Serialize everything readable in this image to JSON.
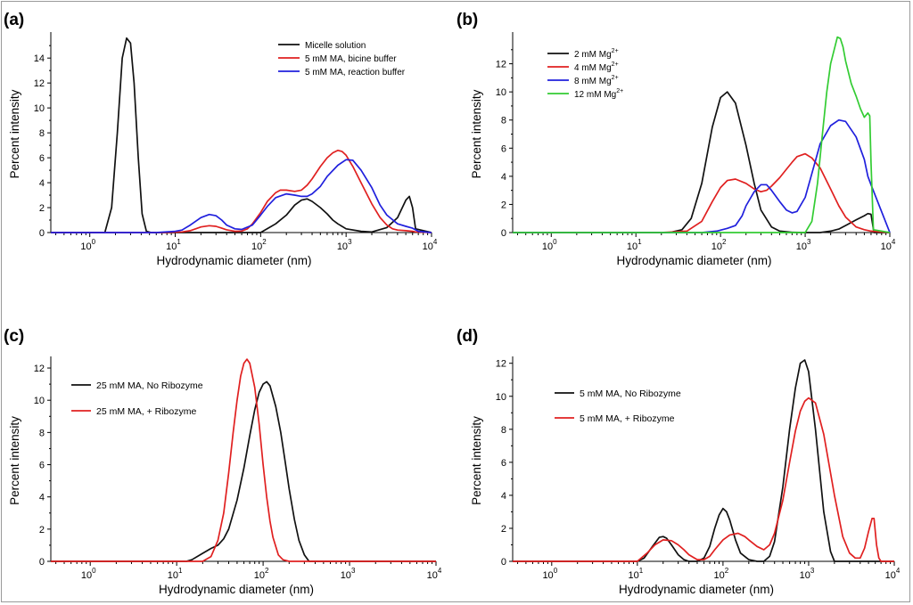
{
  "figure": {
    "tick_labels_x": [
      "10",
      "10",
      "10",
      "10",
      "10"
    ],
    "tick_exponents_x": [
      "0",
      "1",
      "2",
      "3",
      "4"
    ]
  },
  "chart_data": [
    {
      "panel": "(a)",
      "type": "line",
      "xscale": "log",
      "xlim": [
        0.35,
        10000
      ],
      "ylim": [
        0,
        15.8
      ],
      "yticks": [
        0,
        2,
        4,
        6,
        8,
        10,
        12,
        14
      ],
      "xlabel": "Hydrodynamic diameter (nm)",
      "ylabel": "Percent intensity",
      "legend_position": "top-right",
      "series": [
        {
          "name": "Micelle solution",
          "color": "#111111",
          "x": [
            0.35,
            1.5,
            1.8,
            2.1,
            2.4,
            2.7,
            3.0,
            3.3,
            3.7,
            4.1,
            4.6,
            5.2,
            100,
            150,
            200,
            250,
            300,
            350,
            400,
            500,
            600,
            700,
            800,
            1000,
            1500,
            2000,
            3000,
            4000,
            5000,
            5500,
            6000,
            6500,
            10000
          ],
          "y": [
            0,
            0,
            2.0,
            8.0,
            14.0,
            15.6,
            15.2,
            12.0,
            6.0,
            1.5,
            0.1,
            0,
            0,
            0.7,
            1.4,
            2.2,
            2.6,
            2.7,
            2.5,
            2.0,
            1.5,
            1.0,
            0.7,
            0.3,
            0.1,
            0.05,
            0.4,
            1.2,
            2.6,
            2.9,
            2.0,
            0.3,
            0
          ]
        },
        {
          "name": "5 mM MA, bicine buffer",
          "color": "#e02020",
          "x": [
            0.35,
            7,
            12,
            15,
            20,
            25,
            30,
            35,
            40,
            50,
            60,
            70,
            80,
            100,
            120,
            150,
            170,
            200,
            250,
            300,
            350,
            400,
            500,
            600,
            700,
            800,
            900,
            1000,
            1200,
            1500,
            2000,
            2500,
            3000,
            3500,
            4000,
            5000,
            6000,
            6500,
            10000
          ],
          "y": [
            0,
            0,
            0.05,
            0.15,
            0.45,
            0.55,
            0.5,
            0.35,
            0.22,
            0.1,
            0.12,
            0.3,
            0.7,
            1.6,
            2.5,
            3.2,
            3.4,
            3.4,
            3.3,
            3.4,
            3.8,
            4.3,
            5.3,
            6.0,
            6.4,
            6.6,
            6.5,
            6.2,
            5.3,
            4.0,
            2.3,
            1.2,
            0.6,
            0.3,
            0.2,
            0.15,
            0.1,
            0.05,
            0
          ]
        },
        {
          "name": "5 mM MA, reaction buffer",
          "color": "#2020dd",
          "x": [
            0.35,
            6,
            10,
            12,
            15,
            20,
            25,
            30,
            35,
            40,
            50,
            60,
            80,
            100,
            120,
            150,
            200,
            250,
            300,
            350,
            400,
            500,
            600,
            800,
            1000,
            1200,
            1500,
            2000,
            2500,
            3000,
            4000,
            5000,
            6000,
            7000,
            10000
          ],
          "y": [
            0,
            0,
            0.1,
            0.2,
            0.6,
            1.2,
            1.45,
            1.35,
            1.0,
            0.6,
            0.3,
            0.25,
            0.6,
            1.4,
            2.1,
            2.8,
            3.1,
            3.0,
            2.9,
            2.9,
            3.1,
            3.7,
            4.5,
            5.4,
            5.85,
            5.8,
            5.0,
            3.6,
            2.2,
            1.4,
            0.7,
            0.5,
            0.35,
            0.1,
            0
          ]
        }
      ]
    },
    {
      "panel": "(b)",
      "type": "line",
      "xscale": "log",
      "xlim": [
        0.35,
        10000
      ],
      "ylim": [
        0,
        14
      ],
      "yticks": [
        0,
        2,
        4,
        6,
        8,
        10,
        12
      ],
      "xlabel": "Hydrodynamic diameter (nm)",
      "ylabel": "Percent intensity",
      "legend_position": "top-left",
      "series": [
        {
          "name": "2 mM Mg",
          "superscript": "2+",
          "color": "#111111",
          "x": [
            0.35,
            25,
            35,
            45,
            60,
            80,
            100,
            120,
            150,
            200,
            250,
            300,
            400,
            500,
            700,
            1000,
            1500,
            2000,
            2500,
            3000,
            4000,
            5000,
            5500,
            6000,
            6500,
            10000
          ],
          "y": [
            0,
            0,
            0.2,
            1.0,
            3.5,
            7.5,
            9.6,
            10.0,
            9.2,
            6.2,
            3.5,
            1.6,
            0.4,
            0.1,
            0.02,
            0,
            0,
            0.1,
            0.25,
            0.5,
            0.9,
            1.2,
            1.35,
            1.3,
            0,
            0
          ]
        },
        {
          "name": "4 mM Mg",
          "superscript": "2+",
          "color": "#e02020",
          "x": [
            0.35,
            20,
            40,
            60,
            80,
            100,
            120,
            150,
            200,
            250,
            300,
            350,
            400,
            500,
            600,
            700,
            800,
            1000,
            1200,
            1500,
            2000,
            2500,
            3000,
            4000,
            5000,
            6000,
            10000
          ],
          "y": [
            0,
            0,
            0.1,
            0.8,
            2.2,
            3.2,
            3.7,
            3.8,
            3.5,
            3.1,
            2.9,
            3.0,
            3.3,
            3.9,
            4.5,
            5.0,
            5.4,
            5.6,
            5.3,
            4.6,
            3.1,
            1.9,
            1.1,
            0.4,
            0.2,
            0.1,
            0
          ]
        },
        {
          "name": "8 mM Mg",
          "superscript": "2+",
          "color": "#2020dd",
          "x": [
            0.35,
            60,
            90,
            120,
            150,
            180,
            200,
            250,
            300,
            350,
            400,
            500,
            600,
            700,
            800,
            1000,
            1200,
            1500,
            2000,
            2500,
            3000,
            4000,
            5000,
            5500,
            6000,
            10000
          ],
          "y": [
            0,
            0,
            0.1,
            0.3,
            0.5,
            1.2,
            1.9,
            2.9,
            3.4,
            3.4,
            3.0,
            2.2,
            1.6,
            1.4,
            1.5,
            2.5,
            4.2,
            6.3,
            7.6,
            8.0,
            7.9,
            6.8,
            5.2,
            4.0,
            3.4,
            0
          ]
        },
        {
          "name": "12 mM Mg",
          "superscript": "2+",
          "color": "#33cc33",
          "x": [
            0.35,
            1000,
            1200,
            1400,
            1600,
            1800,
            2000,
            2200,
            2400,
            2600,
            2800,
            3000,
            3500,
            4000,
            4500,
            5000,
            5500,
            5800,
            6000,
            6400,
            10000
          ],
          "y": [
            0,
            0,
            0.8,
            3.5,
            7.0,
            10.0,
            12.0,
            13.0,
            13.9,
            13.8,
            13.2,
            12.2,
            10.6,
            9.7,
            8.8,
            8.2,
            8.5,
            8.3,
            5.0,
            0.2,
            0
          ]
        }
      ]
    },
    {
      "panel": "(c)",
      "type": "line",
      "xscale": "log",
      "xlim": [
        0.35,
        10000
      ],
      "ylim": [
        0,
        12.5
      ],
      "yticks": [
        0,
        2,
        4,
        6,
        8,
        10,
        12
      ],
      "xlabel": "Hydrodynamic diameter (nm)",
      "ylabel": "Percent intensity",
      "legend_position": "top-left",
      "series": [
        {
          "name": "25 mM MA, No Ribozyme",
          "color": "#111111",
          "x": [
            0.35,
            13,
            15,
            20,
            25,
            30,
            35,
            40,
            50,
            60,
            70,
            80,
            90,
            100,
            110,
            120,
            140,
            160,
            180,
            200,
            230,
            260,
            300,
            340,
            10000
          ],
          "y": [
            0,
            0,
            0.1,
            0.5,
            0.8,
            1.0,
            1.4,
            2.0,
            3.8,
            5.8,
            7.8,
            9.4,
            10.5,
            11.0,
            11.15,
            10.9,
            9.6,
            8.0,
            6.2,
            4.5,
            2.6,
            1.3,
            0.4,
            0,
            0
          ]
        },
        {
          "name": "25 mM MA, + Ribozyme",
          "color": "#e02020",
          "x": [
            0.35,
            20,
            25,
            30,
            35,
            40,
            45,
            50,
            55,
            60,
            65,
            70,
            80,
            90,
            100,
            110,
            120,
            130,
            150,
            170,
            200,
            10000
          ],
          "y": [
            0,
            0,
            0.3,
            1.3,
            3.0,
            5.5,
            8.0,
            10.0,
            11.5,
            12.3,
            12.55,
            12.3,
            10.8,
            8.5,
            6.0,
            4.0,
            2.5,
            1.5,
            0.4,
            0.1,
            0,
            0
          ]
        }
      ]
    },
    {
      "panel": "(d)",
      "type": "line",
      "xscale": "log",
      "xlim": [
        0.35,
        10000
      ],
      "ylim": [
        0,
        12.2
      ],
      "yticks": [
        0,
        2,
        4,
        6,
        8,
        10,
        12
      ],
      "xlabel": "Hydrodynamic diameter (nm)",
      "ylabel": "Percent intensity",
      "legend_position": "upper-left",
      "series": [
        {
          "name": "5 mM MA, No Ribozyme",
          "color": "#111111",
          "x": [
            0.35,
            10,
            12,
            15,
            18,
            20,
            22,
            25,
            30,
            35,
            40,
            50,
            60,
            70,
            80,
            90,
            100,
            110,
            120,
            140,
            160,
            200,
            250,
            300,
            350,
            400,
            500,
            600,
            700,
            800,
            900,
            1000,
            1200,
            1500,
            1800,
            2000,
            10000
          ],
          "y": [
            0,
            0,
            0.2,
            0.9,
            1.45,
            1.5,
            1.4,
            1.0,
            0.4,
            0.1,
            0,
            0,
            0.2,
            0.9,
            2.0,
            2.8,
            3.2,
            3.0,
            2.5,
            1.3,
            0.5,
            0.1,
            0,
            0,
            0.3,
            1.2,
            4.5,
            8.0,
            10.5,
            12.0,
            12.2,
            11.5,
            8.0,
            3.0,
            0.6,
            0,
            0
          ]
        },
        {
          "name": "5 mM MA, + Ribozyme",
          "color": "#e02020",
          "x": [
            0.35,
            10,
            13,
            16,
            20,
            25,
            30,
            35,
            40,
            50,
            60,
            70,
            80,
            100,
            120,
            150,
            180,
            200,
            250,
            300,
            350,
            400,
            500,
            600,
            700,
            800,
            900,
            1000,
            1200,
            1500,
            2000,
            2500,
            3000,
            3500,
            4000,
            4500,
            5000,
            5500,
            5800,
            6200,
            6600,
            7000,
            10000
          ],
          "y": [
            0,
            0,
            0.5,
            1.0,
            1.3,
            1.25,
            1.0,
            0.7,
            0.4,
            0.1,
            0.1,
            0.3,
            0.7,
            1.3,
            1.6,
            1.7,
            1.5,
            1.3,
            0.9,
            0.7,
            1.0,
            1.7,
            3.7,
            6.0,
            7.9,
            9.1,
            9.7,
            9.9,
            9.6,
            7.7,
            4.0,
            1.5,
            0.5,
            0.2,
            0.2,
            0.8,
            1.8,
            2.6,
            2.6,
            1.0,
            0.2,
            0,
            0
          ]
        }
      ]
    }
  ]
}
